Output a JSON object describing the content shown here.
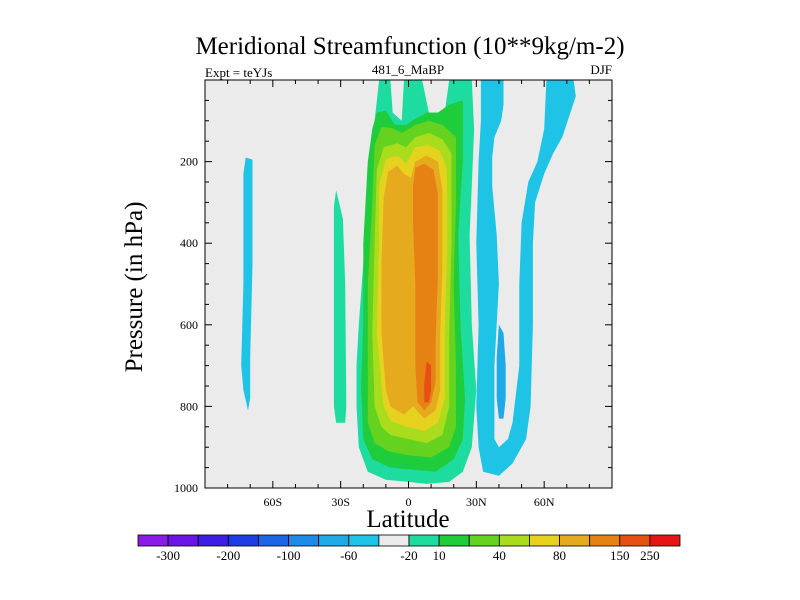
{
  "chart_data": {
    "type": "heatmap",
    "title": "Meridional Streamfunction (10**9kg/m-2)",
    "left_label": "Expt = teYJs",
    "center_label": "481_6_MaBP",
    "right_label": "DJF",
    "xlabel": "Latitude",
    "ylabel": "Pressure (in hPa)",
    "xlim": [
      -90,
      90
    ],
    "ylim": [
      0,
      1000
    ],
    "y_inverted": true,
    "x_ticks": [
      {
        "value": -60,
        "label": "60S"
      },
      {
        "value": -30,
        "label": "30S"
      },
      {
        "value": 0,
        "label": "0"
      },
      {
        "value": 30,
        "label": "30N"
      },
      {
        "value": 60,
        "label": "60N"
      }
    ],
    "y_ticks": [
      {
        "value": 200,
        "label": "200"
      },
      {
        "value": 400,
        "label": "400"
      },
      {
        "value": 600,
        "label": "600"
      },
      {
        "value": 800,
        "label": "800"
      },
      {
        "value": 1000,
        "label": "1000"
      }
    ],
    "colorbar": {
      "colors": [
        "#8a1ce6",
        "#6a14e6",
        "#3c1ee6",
        "#1e3ce6",
        "#1e64e6",
        "#1e8ce6",
        "#1eaae6",
        "#1ec3e6",
        "#ebebeb",
        "#1edca0",
        "#1ecc3c",
        "#64d21e",
        "#aadc1e",
        "#e6d21e",
        "#e6aa1e",
        "#e68214",
        "#e65014",
        "#e61414"
      ],
      "labels": [
        "-300",
        "-200",
        "-100",
        "-60",
        "-20",
        "10",
        "40",
        "80",
        "150",
        "250"
      ],
      "levels": [
        -300,
        -250,
        -200,
        -150,
        -100,
        -80,
        -60,
        -40,
        -20,
        0,
        10,
        20,
        40,
        60,
        80,
        100,
        150,
        200,
        250
      ]
    },
    "contour_regions": [
      {
        "level_index": 7,
        "points": [
          [
            -72,
            190
          ],
          [
            -69,
            195
          ],
          [
            -69,
            450
          ],
          [
            -70,
            680
          ],
          [
            -70,
            780
          ],
          [
            -71,
            810
          ],
          [
            -73,
            760
          ],
          [
            -74,
            700
          ],
          [
            -73,
            500
          ],
          [
            -73,
            330
          ],
          [
            -73,
            230
          ]
        ]
      },
      {
        "level_index": 9,
        "points": [
          [
            -32,
            270
          ],
          [
            -29,
            340
          ],
          [
            -28,
            500
          ],
          [
            -27.5,
            800
          ],
          [
            -28,
            840
          ],
          [
            -32,
            840
          ],
          [
            -33,
            800
          ],
          [
            -33,
            600
          ],
          [
            -33,
            400
          ],
          [
            -33,
            310
          ]
        ]
      },
      {
        "level_index": 9,
        "points": [
          [
            -13,
            0
          ],
          [
            -8,
            0
          ],
          [
            -7,
            80
          ],
          [
            -3,
            100
          ],
          [
            -2,
            0
          ],
          [
            6,
            0
          ],
          [
            9,
            80
          ],
          [
            16,
            80
          ],
          [
            18,
            0
          ],
          [
            28,
            0
          ],
          [
            29,
            120
          ],
          [
            28,
            260
          ],
          [
            27,
            380
          ],
          [
            28,
            600
          ],
          [
            30,
            760
          ],
          [
            28,
            900
          ],
          [
            24,
            960
          ],
          [
            18,
            985
          ],
          [
            8,
            990
          ],
          [
            0,
            985
          ],
          [
            -10,
            980
          ],
          [
            -18,
            960
          ],
          [
            -22,
            900
          ],
          [
            -23,
            800
          ],
          [
            -23,
            700
          ],
          [
            -22,
            600
          ],
          [
            -20,
            450
          ],
          [
            -18,
            250
          ],
          [
            -15,
            100
          ]
        ]
      },
      {
        "level_index": 10,
        "points": [
          [
            -14,
            80
          ],
          [
            -10,
            75
          ],
          [
            -6,
            110
          ],
          [
            -1,
            110
          ],
          [
            3,
            95
          ],
          [
            8,
            80
          ],
          [
            13,
            80
          ],
          [
            18,
            60
          ],
          [
            24,
            50
          ],
          [
            24,
            200
          ],
          [
            22,
            380
          ],
          [
            23,
            600
          ],
          [
            25,
            780
          ],
          [
            24,
            880
          ],
          [
            20,
            930
          ],
          [
            12,
            960
          ],
          [
            2,
            955
          ],
          [
            -8,
            950
          ],
          [
            -16,
            930
          ],
          [
            -20,
            880
          ],
          [
            -21,
            750
          ],
          [
            -20,
            600
          ],
          [
            -20,
            400
          ],
          [
            -18,
            200
          ],
          [
            -16,
            120
          ]
        ]
      },
      {
        "level_index": 11,
        "points": [
          [
            -12,
            115
          ],
          [
            -7,
            118
          ],
          [
            -3,
            130
          ],
          [
            3,
            110
          ],
          [
            9,
            100
          ],
          [
            15,
            110
          ],
          [
            21,
            140
          ],
          [
            21,
            300
          ],
          [
            20,
            500
          ],
          [
            21,
            700
          ],
          [
            21,
            850
          ],
          [
            18,
            900
          ],
          [
            10,
            925
          ],
          [
            0,
            920
          ],
          [
            -9,
            910
          ],
          [
            -15,
            890
          ],
          [
            -18,
            840
          ],
          [
            -18,
            700
          ],
          [
            -18,
            500
          ],
          [
            -16,
            300
          ],
          [
            -15,
            160
          ]
        ]
      },
      {
        "level_index": 12,
        "points": [
          [
            -11,
            165
          ],
          [
            -5,
            155
          ],
          [
            -1,
            165
          ],
          [
            3,
            140
          ],
          [
            9,
            130
          ],
          [
            15,
            145
          ],
          [
            19,
            180
          ],
          [
            19,
            400
          ],
          [
            18,
            620
          ],
          [
            18,
            800
          ],
          [
            15,
            870
          ],
          [
            8,
            890
          ],
          [
            0,
            880
          ],
          [
            -8,
            870
          ],
          [
            -12,
            850
          ],
          [
            -15,
            800
          ],
          [
            -16,
            620
          ],
          [
            -15,
            400
          ],
          [
            -14,
            220
          ]
        ]
      },
      {
        "level_index": 13,
        "points": [
          [
            -10,
            195
          ],
          [
            -5,
            185
          ],
          [
            -1,
            205
          ],
          [
            3,
            165
          ],
          [
            9,
            160
          ],
          [
            14,
            175
          ],
          [
            17,
            220
          ],
          [
            17,
            420
          ],
          [
            16,
            620
          ],
          [
            16,
            780
          ],
          [
            13,
            840
          ],
          [
            7,
            860
          ],
          [
            -1,
            850
          ],
          [
            -8,
            835
          ],
          [
            -11,
            800
          ],
          [
            -14,
            620
          ],
          [
            -13,
            400
          ],
          [
            -13,
            260
          ]
        ]
      },
      {
        "level_index": 14,
        "points": [
          [
            -9,
            225
          ],
          [
            -5,
            210
          ],
          [
            -2,
            230
          ],
          [
            1,
            240
          ],
          [
            3,
            200
          ],
          [
            8,
            185
          ],
          [
            13,
            200
          ],
          [
            15,
            270
          ],
          [
            15,
            460
          ],
          [
            14,
            620
          ],
          [
            14,
            760
          ],
          [
            12,
            810
          ],
          [
            7,
            830
          ],
          [
            2,
            800
          ],
          [
            -2,
            820
          ],
          [
            -8,
            800
          ],
          [
            -10,
            760
          ],
          [
            -12,
            620
          ],
          [
            -12,
            450
          ],
          [
            -11,
            290
          ]
        ]
      },
      {
        "level_index": 15,
        "points": [
          [
            3,
            215
          ],
          [
            7,
            205
          ],
          [
            11,
            220
          ],
          [
            13,
            280
          ],
          [
            13,
            480
          ],
          [
            12,
            640
          ],
          [
            12,
            740
          ],
          [
            10,
            790
          ],
          [
            7,
            810
          ],
          [
            4,
            790
          ],
          [
            3,
            700
          ],
          [
            3,
            500
          ],
          [
            2,
            350
          ],
          [
            2,
            260
          ]
        ]
      },
      {
        "level_index": 16,
        "points": [
          [
            8,
            690
          ],
          [
            10,
            700
          ],
          [
            10,
            760
          ],
          [
            9,
            790
          ],
          [
            7,
            790
          ],
          [
            7,
            740
          ]
        ]
      },
      {
        "level_index": 7,
        "points": [
          [
            32,
            0
          ],
          [
            42,
            0
          ],
          [
            42,
            60
          ],
          [
            41,
            100
          ],
          [
            38,
            140
          ],
          [
            37,
            190
          ],
          [
            37,
            260
          ],
          [
            39,
            380
          ],
          [
            40,
            500
          ],
          [
            38,
            700
          ],
          [
            38,
            880
          ],
          [
            40,
            900
          ],
          [
            44,
            880
          ],
          [
            46,
            840
          ],
          [
            49,
            700
          ],
          [
            49,
            500
          ],
          [
            50,
            350
          ],
          [
            53,
            250
          ],
          [
            57,
            200
          ],
          [
            60,
            120
          ],
          [
            61,
            0
          ],
          [
            73,
            0
          ],
          [
            74,
            40
          ],
          [
            68,
            140
          ],
          [
            64,
            180
          ],
          [
            60,
            230
          ],
          [
            56,
            300
          ],
          [
            55,
            400
          ],
          [
            55,
            600
          ],
          [
            54,
            800
          ],
          [
            52,
            880
          ],
          [
            46,
            940
          ],
          [
            40,
            970
          ],
          [
            33,
            960
          ],
          [
            31,
            900
          ],
          [
            30,
            800
          ],
          [
            31,
            600
          ],
          [
            30,
            400
          ],
          [
            31,
            200
          ],
          [
            32,
            100
          ]
        ]
      },
      {
        "level_index": 6,
        "points": [
          [
            40,
            600
          ],
          [
            42,
            620
          ],
          [
            43,
            700
          ],
          [
            43,
            780
          ],
          [
            42,
            830
          ],
          [
            40,
            830
          ],
          [
            39,
            780
          ],
          [
            39,
            680
          ]
        ]
      }
    ]
  }
}
